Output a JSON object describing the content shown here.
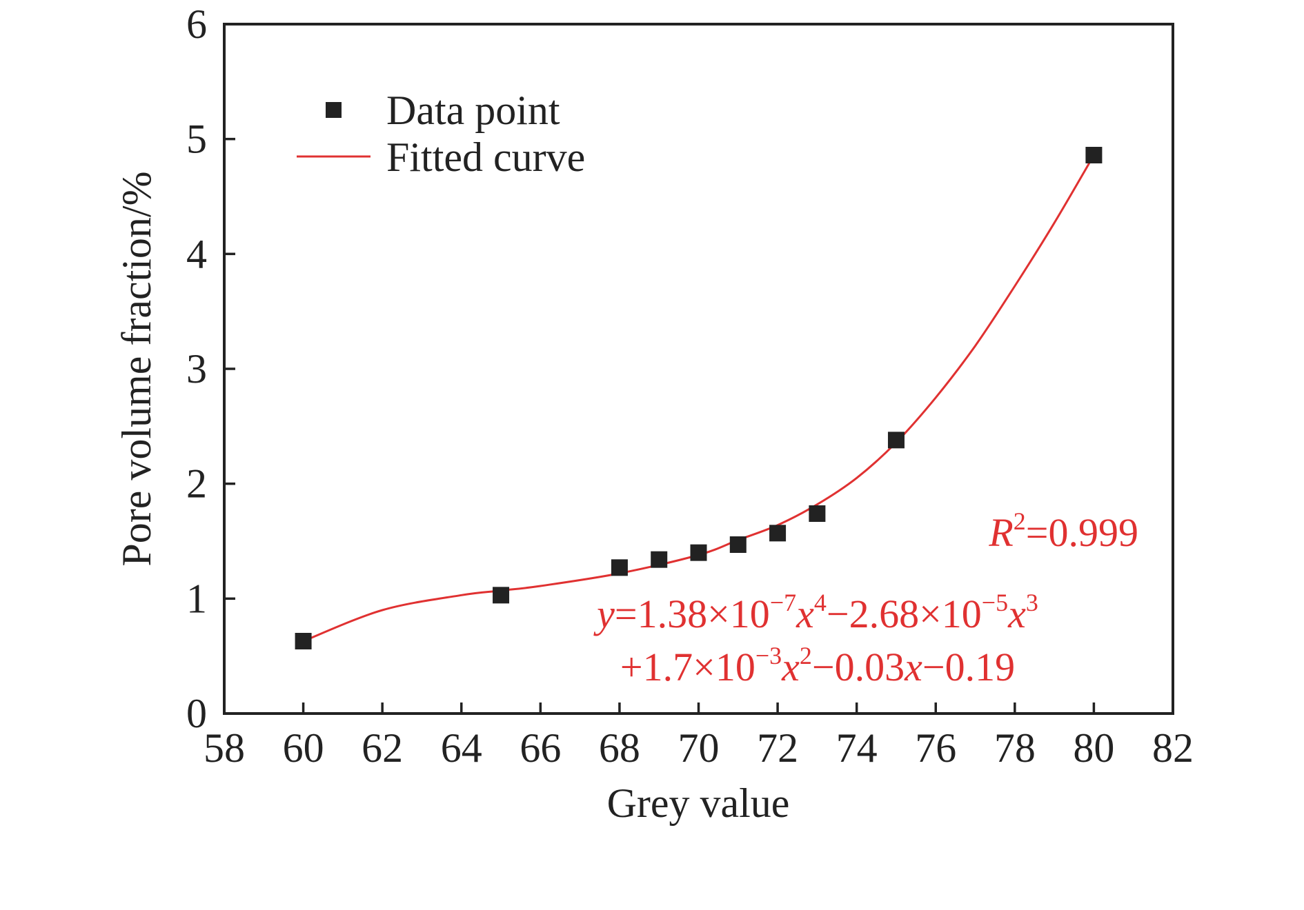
{
  "chart_data": {
    "type": "scatter",
    "title": "",
    "xlabel": "Grey value",
    "ylabel": "Pore volume fraction/%",
    "xlim": [
      58,
      82
    ],
    "ylim": [
      0,
      6
    ],
    "xticks": [
      58,
      60,
      62,
      64,
      66,
      68,
      70,
      72,
      74,
      76,
      78,
      80,
      82
    ],
    "yticks": [
      0,
      1,
      2,
      3,
      4,
      5,
      6
    ],
    "grid": false,
    "legend_position": "top-left",
    "series": [
      {
        "name": "Data point",
        "kind": "scatter",
        "marker": "square",
        "color": "#222222",
        "x": [
          60,
          65,
          68,
          69,
          70,
          71,
          72,
          73,
          75,
          80
        ],
        "y": [
          0.63,
          1.03,
          1.27,
          1.34,
          1.4,
          1.47,
          1.57,
          1.74,
          2.38,
          4.86
        ]
      },
      {
        "name": "Fitted curve",
        "kind": "line",
        "color": "#e03131",
        "x": [
          60,
          62,
          64,
          65,
          66,
          68,
          70,
          71,
          72,
          73,
          74,
          75,
          76,
          77,
          78,
          79,
          80
        ],
        "y": [
          0.63,
          0.9,
          1.03,
          1.07,
          1.11,
          1.22,
          1.38,
          1.51,
          1.64,
          1.82,
          2.05,
          2.36,
          2.75,
          3.2,
          3.72,
          4.27,
          4.86
        ]
      }
    ],
    "annotations": {
      "r2_label": "R",
      "r2_sup": "2",
      "r2_value": "=0.999",
      "eq_line1": [
        {
          "t": "y",
          "i": true
        },
        {
          "t": "=1.38×10"
        },
        {
          "t": "−7",
          "sup": true
        },
        {
          "t": "x",
          "i": true
        },
        {
          "t": "4",
          "sup": true
        },
        {
          "t": "−2.68×10"
        },
        {
          "t": "−5",
          "sup": true
        },
        {
          "t": "x",
          "i": true
        },
        {
          "t": "3",
          "sup": true
        }
      ],
      "eq_line2": [
        {
          "t": "+1.7×10"
        },
        {
          "t": "−3",
          "sup": true
        },
        {
          "t": "x",
          "i": true
        },
        {
          "t": "2",
          "sup": true
        },
        {
          "t": "−0.03"
        },
        {
          "t": "x",
          "i": true
        },
        {
          "t": "−0.19"
        }
      ]
    }
  }
}
